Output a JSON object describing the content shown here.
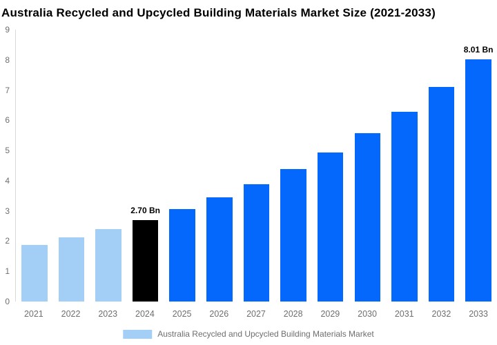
{
  "title": "Australia Recycled and Upcycled Building Materials Market Size (2021-2033)",
  "chart_data": {
    "type": "bar",
    "title": "Australia Recycled and Upcycled Building Materials Market Size (2021-2033)",
    "categories": [
      "2021",
      "2022",
      "2023",
      "2024",
      "2025",
      "2026",
      "2027",
      "2028",
      "2029",
      "2030",
      "2031",
      "2032",
      "2033"
    ],
    "values": [
      1.88,
      2.12,
      2.39,
      2.7,
      3.05,
      3.44,
      3.88,
      4.38,
      4.94,
      5.58,
      6.29,
      7.1,
      8.01
    ],
    "unit": "Bn",
    "colors": [
      "#A3CFF7",
      "#A3CFF7",
      "#A3CFF7",
      "#000000",
      "#0568FC",
      "#0568FC",
      "#0568FC",
      "#0568FC",
      "#0568FC",
      "#0568FC",
      "#0568FC",
      "#0568FC",
      "#0568FC"
    ],
    "annotations": [
      {
        "category": "2024",
        "text": "2.70 Bn"
      },
      {
        "category": "2033",
        "text": "8.01 Bn"
      }
    ],
    "xlabel": "",
    "ylabel": "",
    "ylim": [
      0,
      9
    ],
    "yticks": [
      "0",
      "1",
      "2",
      "3",
      "4",
      "5",
      "6",
      "7",
      "8",
      "9"
    ],
    "grid": false,
    "axis_line_color": "#d9d9d9",
    "tick_label_color": "#6e6e6e",
    "legend_position": "bottom-center",
    "legend": [
      {
        "label": "Australia Recycled and Upcycled Building Materials Market",
        "color": "#A3CFF7"
      }
    ]
  }
}
